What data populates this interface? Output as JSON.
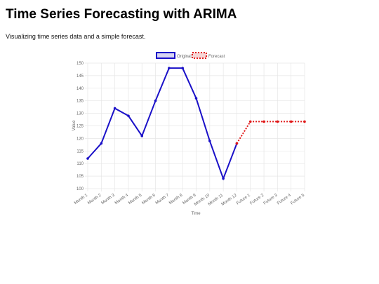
{
  "page": {
    "title": "Time Series Forecasting with ARIMA",
    "subtitle": "Visualizing time series data and a simple forecast."
  },
  "colors": {
    "original": "#1a10c8",
    "original_fill": "#d8d6f2",
    "forecast": "#e01818",
    "forecast_fill": "#f6d6d6",
    "grid": "#e6e6e6",
    "axis_text": "#666666"
  },
  "chart_data": {
    "type": "line",
    "title": "",
    "xlabel": "Time",
    "ylabel": "Value",
    "ylim": [
      100,
      150
    ],
    "y_ticks": [
      100,
      105,
      110,
      115,
      120,
      125,
      130,
      135,
      140,
      145,
      150
    ],
    "categories": [
      "Month 1",
      "Month 2",
      "Month 3",
      "Month 4",
      "Month 5",
      "Month 6",
      "Month 7",
      "Month 8",
      "Month 9",
      "Month 10",
      "Month 11",
      "Month 12",
      "Future 1",
      "Future 2",
      "Future 3",
      "Future 4",
      "Future 5"
    ],
    "grid": true,
    "legend_position": "top-center",
    "series": [
      {
        "name": "Original Data",
        "style": "solid",
        "values": [
          112,
          118,
          132,
          129,
          121,
          135,
          148,
          148,
          136,
          119,
          104,
          118,
          null,
          null,
          null,
          null,
          null
        ]
      },
      {
        "name": "Forecast",
        "style": "dotted",
        "values": [
          null,
          null,
          null,
          null,
          null,
          null,
          null,
          null,
          null,
          null,
          null,
          118,
          126.7,
          126.7,
          126.7,
          126.7,
          126.7
        ]
      }
    ]
  }
}
